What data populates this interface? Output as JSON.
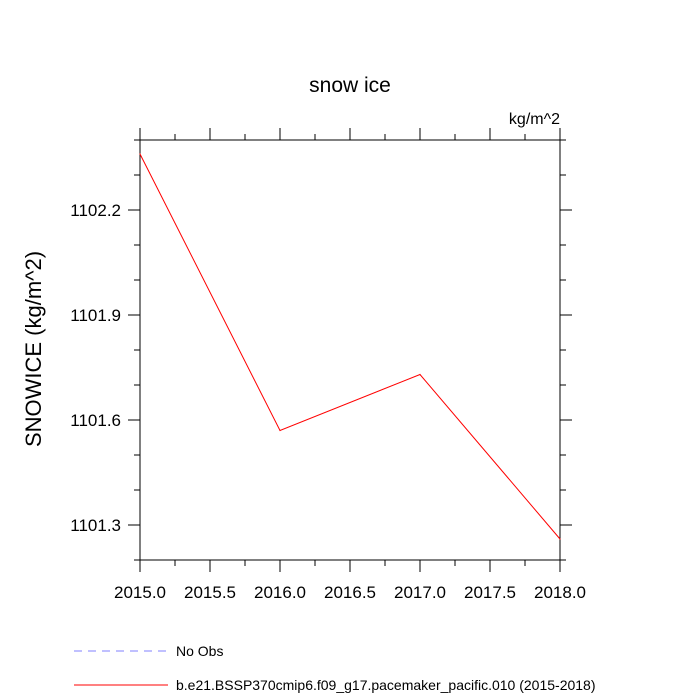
{
  "chart_data": {
    "type": "line",
    "title": "snow ice",
    "units_label": "kg/m^2",
    "ylabel": "SNOWICE  (kg/m^2)",
    "xlabel": "",
    "xlim": [
      2015.0,
      2018.0
    ],
    "ylim": [
      1101.2,
      1102.4
    ],
    "x_ticks": [
      2015.0,
      2015.5,
      2016.0,
      2016.5,
      2017.0,
      2017.5,
      2018.0
    ],
    "x_tick_labels": [
      "2015.0",
      "2015.5",
      "2016.0",
      "2016.5",
      "2017.0",
      "2017.5",
      "2018.0"
    ],
    "y_ticks": [
      1101.3,
      1101.6,
      1101.9,
      1102.2
    ],
    "y_tick_labels": [
      "1101.3",
      "1101.6",
      "1101.9",
      "1102.2"
    ],
    "grid": false,
    "legend_position": "bottom",
    "series": [
      {
        "name": "No Obs",
        "color": "#8080ff",
        "dash": true,
        "x": [],
        "y": []
      },
      {
        "name": "b.e21.BSSP370cmip6.f09_g17.pacemaker_pacific.010 (2015-2018)",
        "color": "#ff0000",
        "dash": false,
        "x": [
          2015.0,
          2016.0,
          2017.0,
          2018.0
        ],
        "y": [
          1102.36,
          1101.57,
          1101.73,
          1101.26
        ]
      }
    ]
  }
}
